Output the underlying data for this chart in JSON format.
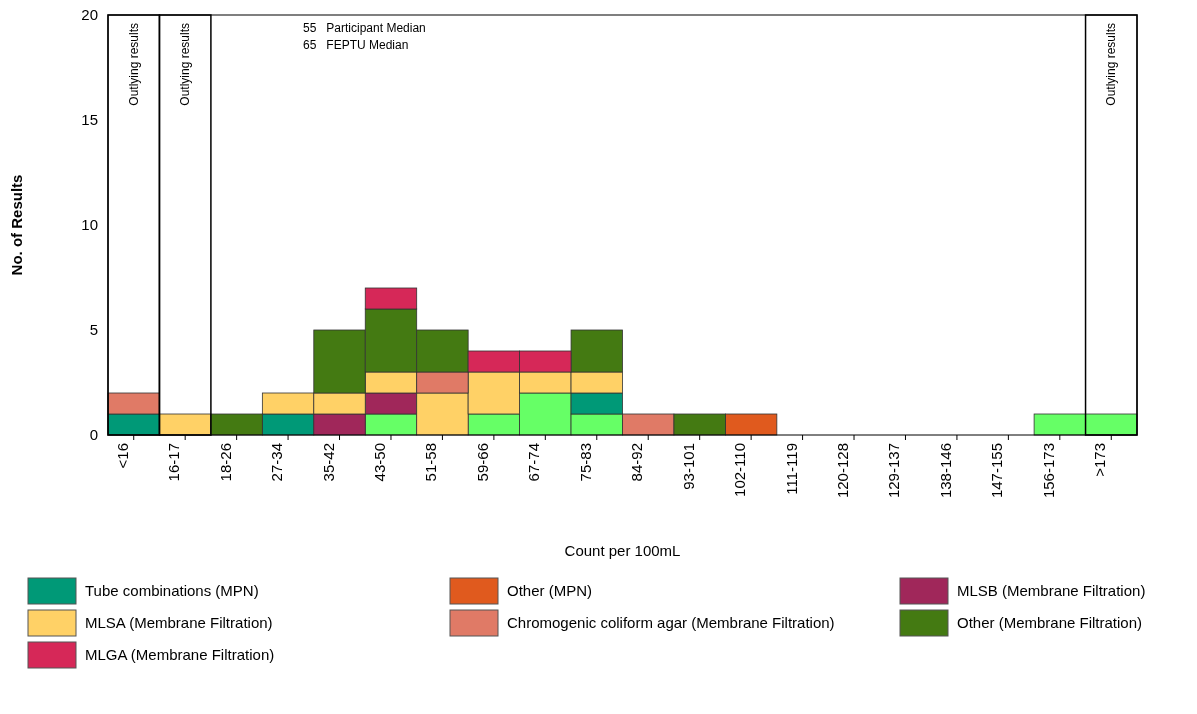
{
  "chart_data": {
    "type": "bar",
    "stacked": true,
    "xlabel": "Count per 100mL",
    "ylabel": "No. of Results",
    "categories": [
      "<16",
      "16-17",
      "18-26",
      "27-34",
      "35-42",
      "43-50",
      "51-58",
      "59-66",
      "67-74",
      "75-83",
      "84-92",
      "93-101",
      "102-110",
      "111-119",
      "120-128",
      "129-137",
      "138-146",
      "147-155",
      "156-173",
      ">173"
    ],
    "ylim": [
      0,
      20
    ],
    "yticks": [
      0,
      5,
      10,
      15,
      20
    ],
    "legend": "bottom",
    "series": [
      {
        "color": "#66ff66",
        "values": [
          null,
          null,
          null,
          null,
          null,
          1,
          null,
          1,
          2,
          1,
          null,
          null,
          null,
          null,
          null,
          null,
          null,
          null,
          1,
          1
        ]
      },
      {
        "name": "Tube combinations (MPN)",
        "color": "#009977",
        "values": [
          1,
          null,
          null,
          1,
          null,
          null,
          null,
          null,
          null,
          1,
          null,
          null,
          null,
          null,
          null,
          null,
          null,
          null,
          null,
          null
        ]
      },
      {
        "name": "Other (MPN)",
        "color": "#e05a1e",
        "values": [
          null,
          null,
          null,
          null,
          null,
          null,
          null,
          null,
          null,
          null,
          null,
          null,
          1,
          null,
          null,
          null,
          null,
          null,
          null,
          null
        ]
      },
      {
        "name": "MLSB (Membrane Filtration)",
        "color": "#a0275a",
        "values": [
          null,
          null,
          null,
          null,
          1,
          1,
          null,
          null,
          null,
          null,
          null,
          null,
          null,
          null,
          null,
          null,
          null,
          null,
          null,
          null
        ]
      },
      {
        "name": "MLSA (Membrane Filtration)",
        "color": "#ffd166",
        "values": [
          null,
          1,
          null,
          1,
          1,
          1,
          2,
          2,
          1,
          1,
          null,
          null,
          null,
          null,
          null,
          null,
          null,
          null,
          null,
          null
        ]
      },
      {
        "name": "Chromogenic coliform agar (Membrane Filtration)",
        "color": "#e07a66",
        "values": [
          1,
          null,
          null,
          null,
          null,
          null,
          1,
          null,
          null,
          null,
          1,
          null,
          null,
          null,
          null,
          null,
          null,
          null,
          null,
          null
        ]
      },
      {
        "name": "Other (Membrane Filtration)",
        "color": "#447a12",
        "values": [
          null,
          null,
          1,
          null,
          3,
          3,
          2,
          null,
          null,
          2,
          null,
          1,
          null,
          null,
          null,
          null,
          null,
          null,
          null,
          null
        ]
      },
      {
        "name": "MLGA (Membrane Filtration)",
        "color": "#d62858",
        "values": [
          null,
          null,
          null,
          null,
          null,
          1,
          null,
          1,
          1,
          null,
          null,
          null,
          null,
          null,
          null,
          null,
          null,
          null,
          null,
          null
        ]
      }
    ],
    "annotations": [
      "55   Participant Median",
      "65   FEPTU Median",
      "Outlying results",
      "Outlying results",
      "Outlying results"
    ]
  }
}
